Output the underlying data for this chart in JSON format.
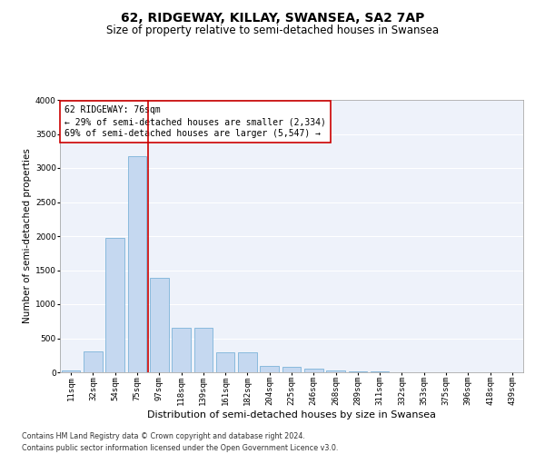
{
  "title": "62, RIDGEWAY, KILLAY, SWANSEA, SA2 7AP",
  "subtitle": "Size of property relative to semi-detached houses in Swansea",
  "xlabel": "Distribution of semi-detached houses by size in Swansea",
  "ylabel": "Number of semi-detached properties",
  "categories": [
    "11sqm",
    "32sqm",
    "54sqm",
    "75sqm",
    "97sqm",
    "118sqm",
    "139sqm",
    "161sqm",
    "182sqm",
    "204sqm",
    "225sqm",
    "246sqm",
    "268sqm",
    "289sqm",
    "311sqm",
    "332sqm",
    "353sqm",
    "375sqm",
    "396sqm",
    "418sqm",
    "439sqm"
  ],
  "values": [
    30,
    310,
    1970,
    3170,
    1390,
    650,
    650,
    300,
    300,
    100,
    80,
    60,
    30,
    20,
    10,
    5,
    3,
    2,
    2,
    1,
    1
  ],
  "bar_color": "#c5d8f0",
  "bar_edge_color": "#6aaad4",
  "annotation_text_line1": "62 RIDGEWAY: 76sqm",
  "annotation_text_line2": "← 29% of semi-detached houses are smaller (2,334)",
  "annotation_text_line3": "69% of semi-detached houses are larger (5,547) →",
  "annotation_box_color": "#ffffff",
  "annotation_box_edge_color": "#cc0000",
  "red_line_x": 3.5,
  "footer_line1": "Contains HM Land Registry data © Crown copyright and database right 2024.",
  "footer_line2": "Contains public sector information licensed under the Open Government Licence v3.0.",
  "ylim": [
    0,
    4000
  ],
  "yticks": [
    0,
    500,
    1000,
    1500,
    2000,
    2500,
    3000,
    3500,
    4000
  ],
  "background_color": "#eef2fa",
  "grid_color": "#ffffff",
  "title_fontsize": 10,
  "subtitle_fontsize": 8.5,
  "xlabel_fontsize": 8,
  "ylabel_fontsize": 7.5,
  "tick_fontsize": 6.5,
  "annotation_fontsize": 7,
  "footer_fontsize": 5.8
}
